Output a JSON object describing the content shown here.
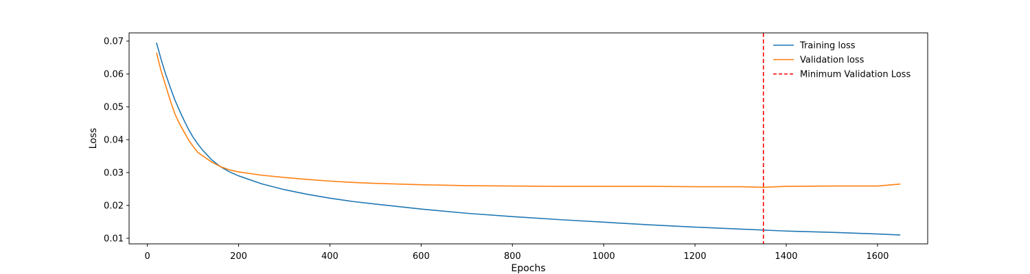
{
  "chart_data": {
    "type": "line",
    "title": "",
    "xlabel": "Epochs",
    "ylabel": "Loss",
    "xlim": [
      -40,
      1710
    ],
    "ylim": [
      0.0083,
      0.0725
    ],
    "xticks": [
      0,
      200,
      400,
      600,
      800,
      1000,
      1200,
      1400,
      1600
    ],
    "yticks": [
      0.01,
      0.02,
      0.03,
      0.04,
      0.05,
      0.06,
      0.07
    ],
    "grid": false,
    "legend_position": "top-right",
    "series": [
      {
        "name": "Training loss",
        "color": "#1f77b4",
        "style": "solid",
        "x": [
          20,
          30,
          40,
          50,
          60,
          70,
          80,
          90,
          100,
          110,
          120,
          140,
          160,
          180,
          200,
          250,
          300,
          350,
          400,
          450,
          500,
          600,
          700,
          800,
          900,
          1000,
          1100,
          1200,
          1300,
          1400,
          1500,
          1600,
          1650
        ],
        "y": [
          0.0695,
          0.0645,
          0.06,
          0.056,
          0.0522,
          0.049,
          0.046,
          0.0432,
          0.0408,
          0.0388,
          0.037,
          0.034,
          0.0318,
          0.0302,
          0.029,
          0.0266,
          0.0248,
          0.0234,
          0.0222,
          0.0212,
          0.0204,
          0.0189,
          0.0176,
          0.0166,
          0.0157,
          0.0149,
          0.0141,
          0.0134,
          0.0128,
          0.0122,
          0.0118,
          0.0113,
          0.011
        ]
      },
      {
        "name": "Validation loss",
        "color": "#ff7f0e",
        "style": "solid",
        "x": [
          20,
          30,
          40,
          50,
          60,
          70,
          80,
          90,
          100,
          110,
          120,
          140,
          160,
          180,
          200,
          250,
          300,
          350,
          400,
          450,
          500,
          600,
          700,
          800,
          900,
          1000,
          1100,
          1200,
          1300,
          1350,
          1400,
          1500,
          1600,
          1650
        ],
        "y": [
          0.0665,
          0.061,
          0.0565,
          0.052,
          0.048,
          0.045,
          0.0425,
          0.04,
          0.038,
          0.0362,
          0.0352,
          0.0333,
          0.0318,
          0.0308,
          0.0302,
          0.0292,
          0.0285,
          0.0279,
          0.0274,
          0.027,
          0.0267,
          0.0263,
          0.026,
          0.0259,
          0.0258,
          0.0258,
          0.0258,
          0.0257,
          0.0257,
          0.0255,
          0.0258,
          0.0259,
          0.0259,
          0.0265
        ]
      }
    ],
    "vlines": [
      {
        "name": "Minimum Validation Loss",
        "x": 1350,
        "color": "#ff0000",
        "style": "dashed"
      }
    ]
  }
}
